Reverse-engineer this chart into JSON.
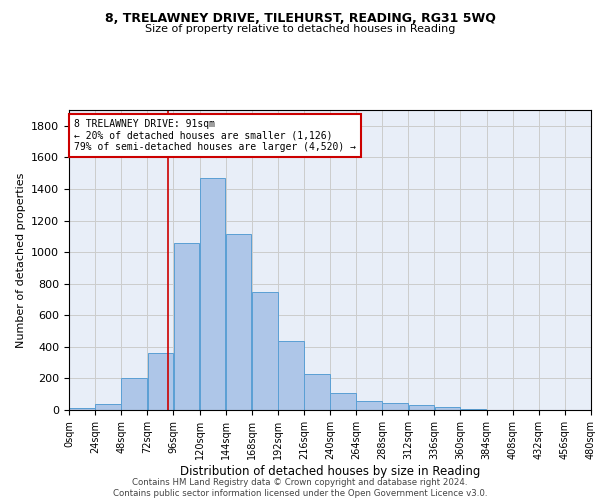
{
  "title1": "8, TRELAWNEY DRIVE, TILEHURST, READING, RG31 5WQ",
  "title2": "Size of property relative to detached houses in Reading",
  "xlabel": "Distribution of detached houses by size in Reading",
  "ylabel": "Number of detached properties",
  "bar_color": "#aec6e8",
  "bar_edge_color": "#5a9fd4",
  "grid_color": "#cccccc",
  "bg_color": "#e8eef8",
  "annotation_box_color": "#cc0000",
  "property_line_x": 91,
  "annotation_text": "8 TRELAWNEY DRIVE: 91sqm\n← 20% of detached houses are smaller (1,126)\n79% of semi-detached houses are larger (4,520) →",
  "bins": [
    0,
    24,
    48,
    72,
    96,
    120,
    144,
    168,
    192,
    216,
    240,
    264,
    288,
    312,
    336,
    360,
    384,
    408,
    432,
    456,
    480
  ],
  "values": [
    10,
    35,
    200,
    360,
    1060,
    1470,
    1115,
    745,
    435,
    225,
    108,
    55,
    47,
    30,
    20,
    5,
    0,
    0,
    0,
    0
  ],
  "footer1": "Contains HM Land Registry data © Crown copyright and database right 2024.",
  "footer2": "Contains public sector information licensed under the Open Government Licence v3.0.",
  "ylim": [
    0,
    1900
  ],
  "yticks": [
    0,
    200,
    400,
    600,
    800,
    1000,
    1200,
    1400,
    1600,
    1800
  ]
}
